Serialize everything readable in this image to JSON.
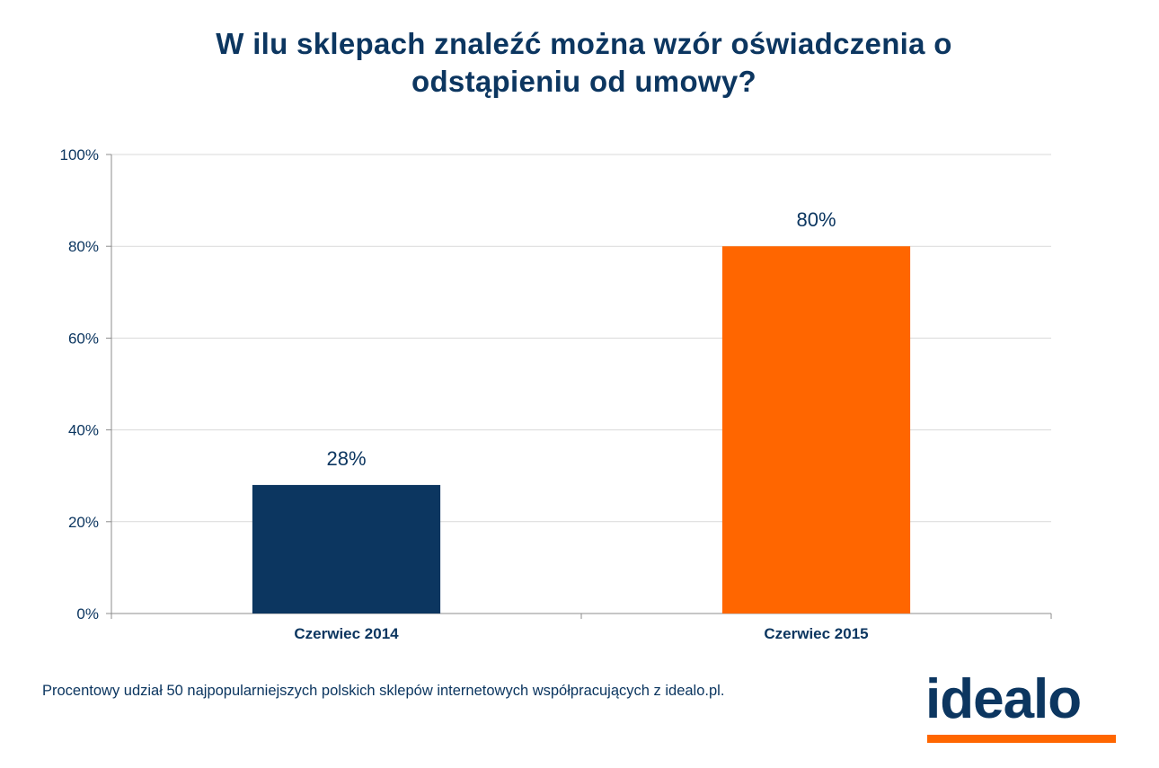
{
  "chart_data": {
    "type": "bar",
    "title": [
      "W ilu sklepach znaleźć można wzór oświadczenia o",
      "odstąpieniu od umowy?"
    ],
    "categories": [
      "Czerwiec 2014",
      "Czerwiec 2015"
    ],
    "values": [
      28,
      80
    ],
    "data_labels": [
      "28%",
      "80%"
    ],
    "colors": [
      "#0c3660",
      "#ff6600"
    ],
    "ylim": [
      0,
      100
    ],
    "yticks": [
      0,
      20,
      40,
      60,
      80,
      100
    ],
    "ytick_labels": [
      "0%",
      "20%",
      "40%",
      "60%",
      "80%",
      "100%"
    ],
    "grid": true,
    "xlabel": "",
    "ylabel": ""
  },
  "footnote": "Procentowy udział 50 najpopularniejszych polskich sklepów internetowych współpracujących z idealo.pl.",
  "logo": {
    "text": "idealo",
    "bar_color": "#ff6600"
  }
}
